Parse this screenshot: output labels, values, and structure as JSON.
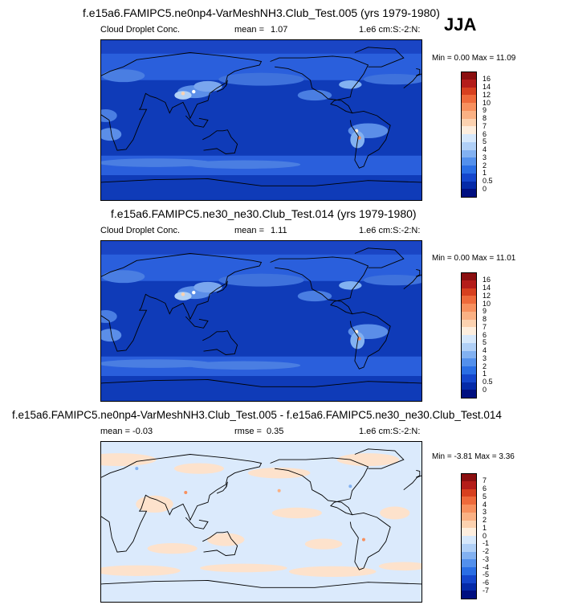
{
  "season": "JJA",
  "panels": [
    {
      "title": "f.e15a6.FAMIPC5.ne0np4-VarMeshNH3.Club_Test.005 (yrs 1979-1980)",
      "left": "Cloud Droplet Conc.",
      "mid_label": "mean =",
      "mid_value": "1.07",
      "units": "1.e6 cm:S:-2:N:",
      "minmax": "Min =   0.00 Max =  11.09",
      "colorbar": {
        "labels": [
          "16",
          "14",
          "12",
          "10",
          "9",
          "8",
          "7",
          "6",
          "5",
          "4",
          "3",
          "2",
          "1",
          "0.5",
          "0"
        ],
        "colors": [
          "#8b0f10",
          "#b41d1a",
          "#d7401f",
          "#ee6a3b",
          "#f7905e",
          "#fab184",
          "#fcd2b0",
          "#fdeede",
          "#d6e8fb",
          "#b0d0f7",
          "#82b1f1",
          "#5390ec",
          "#2a6ee4",
          "#1446cc",
          "#052aa8",
          "#000f80"
        ]
      },
      "map_type": "absolute"
    },
    {
      "title": "f.e15a6.FAMIPC5.ne30_ne30.Club_Test.014 (yrs 1979-1980)",
      "left": "Cloud Droplet Conc.",
      "mid_label": "mean =",
      "mid_value": "1.11",
      "units": "1.e6 cm:S:-2:N:",
      "minmax": "Min =   0.00 Max =  11.01",
      "colorbar": {
        "labels": [
          "16",
          "14",
          "12",
          "10",
          "9",
          "8",
          "7",
          "6",
          "5",
          "4",
          "3",
          "2",
          "1",
          "0.5",
          "0"
        ],
        "colors": [
          "#8b0f10",
          "#b41d1a",
          "#d7401f",
          "#ee6a3b",
          "#f7905e",
          "#fab184",
          "#fcd2b0",
          "#fdeede",
          "#d6e8fb",
          "#b0d0f7",
          "#82b1f1",
          "#5390ec",
          "#2a6ee4",
          "#1446cc",
          "#052aa8",
          "#000f80"
        ]
      },
      "map_type": "absolute"
    },
    {
      "title": "f.e15a6.FAMIPC5.ne0np4-VarMeshNH3.Club_Test.005 - f.e15a6.FAMIPC5.ne30_ne30.Club_Test.014",
      "left": "mean = -0.03",
      "mid_label": "rmse =",
      "mid_value": "0.35",
      "units": "1.e6 cm:S:-2:N:",
      "minmax": "Min =  -3.81 Max =   3.36",
      "colorbar": {
        "labels": [
          "7",
          "6",
          "5",
          "4",
          "3",
          "2",
          "1",
          "0",
          "-1",
          "-2",
          "-3",
          "-4",
          "-5",
          "-6",
          "-7"
        ],
        "colors": [
          "#8b0f10",
          "#b41d1a",
          "#d7401f",
          "#ee6a3b",
          "#f7905e",
          "#fab184",
          "#fcd2b0",
          "#fdeede",
          "#d6e8fb",
          "#b0d0f7",
          "#82b1f1",
          "#5390ec",
          "#2a6ee4",
          "#1446cc",
          "#052aa8",
          "#000f80"
        ]
      },
      "map_type": "difference"
    }
  ],
  "chart_data": [
    {
      "type": "heatmap",
      "title": "f.e15a6.FAMIPC5.ne0np4-VarMeshNH3.Club_Test.005 (yrs 1979-1980)",
      "variable": "Cloud Droplet Conc.",
      "units": "1.e6 cm:S:-2:N:",
      "mean": 1.07,
      "min": 0.0,
      "max": 11.09,
      "colorbar_levels": [
        0,
        0.5,
        1,
        2,
        3,
        4,
        5,
        6,
        7,
        8,
        9,
        10,
        12,
        14,
        16
      ]
    },
    {
      "type": "heatmap",
      "title": "f.e15a6.FAMIPC5.ne30_ne30.Club_Test.014 (yrs 1979-1980)",
      "variable": "Cloud Droplet Conc.",
      "units": "1.e6 cm:S:-2:N:",
      "mean": 1.11,
      "min": 0.0,
      "max": 11.01,
      "colorbar_levels": [
        0,
        0.5,
        1,
        2,
        3,
        4,
        5,
        6,
        7,
        8,
        9,
        10,
        12,
        14,
        16
      ]
    },
    {
      "type": "heatmap",
      "title": "f.e15a6.FAMIPC5.ne0np4-VarMeshNH3.Club_Test.005 - f.e15a6.FAMIPC5.ne30_ne30.Club_Test.014",
      "units": "1.e6 cm:S:-2:N:",
      "mean": -0.03,
      "rmse": 0.35,
      "min": -3.81,
      "max": 3.36,
      "colorbar_levels": [
        -7,
        -6,
        -5,
        -4,
        -3,
        -2,
        -1,
        0,
        1,
        2,
        3,
        4,
        5,
        6,
        7
      ]
    }
  ]
}
